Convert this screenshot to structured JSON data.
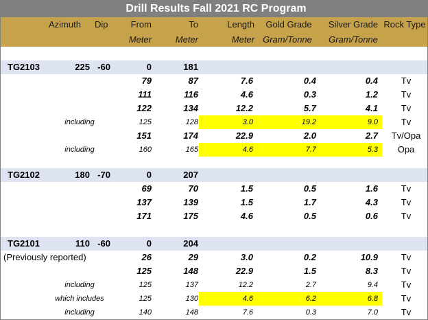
{
  "title": "Drill Results Fall 2021 RC Program",
  "headers": {
    "azimuth": "Azimuth",
    "dip": "Dip",
    "from": "From",
    "to": "To",
    "length": "Length",
    "gold": "Gold Grade",
    "silver": "Silver Grade",
    "rock": "Rock Type"
  },
  "units": {
    "from": "Meter",
    "to": "Meter",
    "length": "Meter",
    "gold": "Gram/Tonne",
    "silver": "Gram/Tonne"
  },
  "colors": {
    "title_bg": "#7f7f7f",
    "header_bg": "#c6a34a",
    "hole_row_bg": "#dde3f0",
    "highlight": "#ffff00"
  },
  "holes": [
    {
      "id": "TG2103",
      "azimuth": "225",
      "dip": "-60",
      "from": "0",
      "to": "181",
      "rows": [
        {
          "label": "",
          "from": "79",
          "to": "87",
          "length": "7.6",
          "gold": "0.4",
          "silver": "0.4",
          "rock": "Tv",
          "style": "main",
          "highlight": false
        },
        {
          "label": "",
          "from": "111",
          "to": "116",
          "length": "4.6",
          "gold": "0.3",
          "silver": "1.2",
          "rock": "Tv",
          "style": "main",
          "highlight": false
        },
        {
          "label": "",
          "from": "122",
          "to": "134",
          "length": "12.2",
          "gold": "5.7",
          "silver": "4.1",
          "rock": "Tv",
          "style": "main",
          "highlight": false
        },
        {
          "label": "including",
          "from": "125",
          "to": "128",
          "length": "3.0",
          "gold": "19.2",
          "silver": "9.0",
          "rock": "Tv",
          "style": "sub",
          "highlight": true
        },
        {
          "label": "",
          "from": "151",
          "to": "174",
          "length": "22.9",
          "gold": "2.0",
          "silver": "2.7",
          "rock": "Tv/Opa",
          "style": "main",
          "highlight": false
        },
        {
          "label": "including",
          "from": "160",
          "to": "165",
          "length": "4.6",
          "gold": "7.7",
          "silver": "5.3",
          "rock": "Opa",
          "style": "sub",
          "highlight": true
        }
      ]
    },
    {
      "id": "TG2102",
      "azimuth": "180",
      "dip": "-70",
      "from": "0",
      "to": "207",
      "rows": [
        {
          "label": "",
          "from": "69",
          "to": "70",
          "length": "1.5",
          "gold": "0.5",
          "silver": "1.6",
          "rock": "Tv",
          "style": "main",
          "highlight": false
        },
        {
          "label": "",
          "from": "137",
          "to": "139",
          "length": "1.5",
          "gold": "1.7",
          "silver": "4.3",
          "rock": "Tv",
          "style": "main",
          "highlight": false
        },
        {
          "label": "",
          "from": "171",
          "to": "175",
          "length": "4.6",
          "gold": "0.5",
          "silver": "0.6",
          "rock": "Tv",
          "style": "main",
          "highlight": false
        }
      ]
    },
    {
      "id": "TG2101",
      "azimuth": "110",
      "dip": "-60",
      "from": "0",
      "to": "204",
      "rows": [
        {
          "label": "(Previously reported)",
          "from": "26",
          "to": "29",
          "length": "3.0",
          "gold": "0.2",
          "silver": "10.9",
          "rock": "Tv",
          "style": "main",
          "highlight": false,
          "label_style": "prev"
        },
        {
          "label": "",
          "from": "125",
          "to": "148",
          "length": "22.9",
          "gold": "1.5",
          "silver": "8.3",
          "rock": "Tv",
          "style": "main",
          "highlight": false
        },
        {
          "label": "including",
          "from": "125",
          "to": "137",
          "length": "12.2",
          "gold": "2.7",
          "silver": "9.4",
          "rock": "Tv",
          "style": "sub",
          "highlight": false
        },
        {
          "label": "which includes",
          "from": "125",
          "to": "130",
          "length": "4.6",
          "gold": "6.2",
          "silver": "6.8",
          "rock": "Tv",
          "style": "sub",
          "highlight": true
        },
        {
          "label": "including",
          "from": "140",
          "to": "148",
          "length": "7.6",
          "gold": "0.3",
          "silver": "7.0",
          "rock": "Tv",
          "style": "sub",
          "highlight": false
        }
      ]
    }
  ]
}
